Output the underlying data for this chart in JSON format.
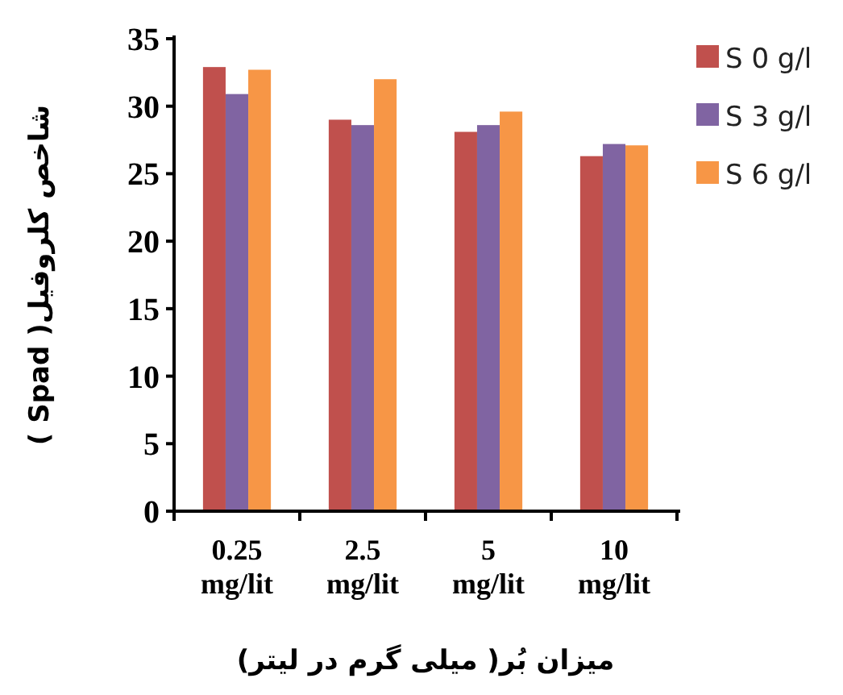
{
  "chart_data": {
    "type": "bar",
    "ylabel": "شاخص کلروفیل( Spad )",
    "xlabel": "میزان بُر( میلی گرم در لیتر)",
    "categories": [
      "0.25 mg/lit",
      "2.5 mg/lit",
      "5 mg/lit",
      "10 mg/lit"
    ],
    "series": [
      {
        "name": "S 0 g/l",
        "color": "#c0504d",
        "values": [
          32.9,
          29.0,
          28.1,
          26.3
        ]
      },
      {
        "name": "S 3 g/l",
        "color": "#8064a2",
        "values": [
          30.9,
          28.6,
          28.6,
          27.2
        ]
      },
      {
        "name": "S 6 g/l",
        "color": "#f79646",
        "values": [
          32.7,
          32.0,
          29.6,
          27.1
        ]
      }
    ],
    "ylim": [
      0,
      35
    ],
    "yticks": [
      0,
      5,
      10,
      15,
      20,
      25,
      30,
      35
    ],
    "grid": false,
    "legend": "right"
  }
}
